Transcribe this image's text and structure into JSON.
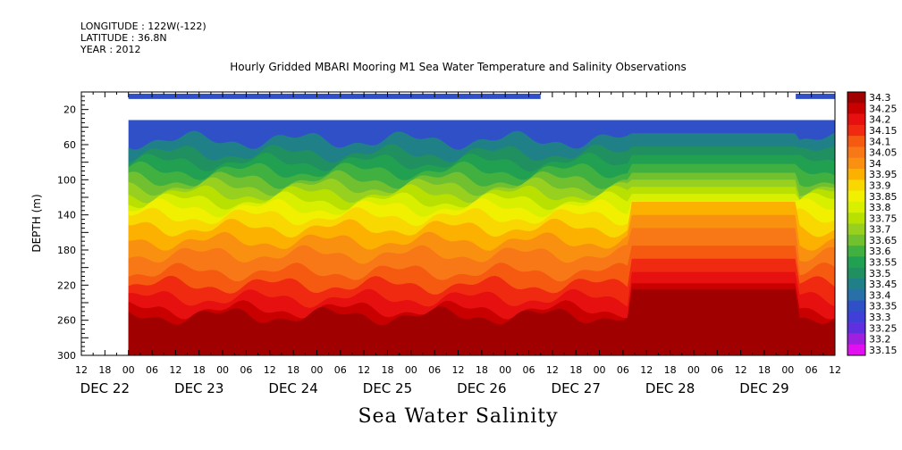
{
  "header": {
    "longitude": "LONGITUDE : 122W(-122)",
    "latitude": "LATITUDE : 36.8N",
    "year": "YEAR : 2012"
  },
  "chart_data": {
    "type": "heatmap",
    "title": "Hourly Gridded MBARI Mooring M1 Sea Water Temperature and Salinity Observations",
    "xlabel": "Sea Water Salinity",
    "ylabel": "DEPTH (m)",
    "y_range": [
      300,
      0
    ],
    "y_ticks": [
      20,
      60,
      100,
      140,
      180,
      220,
      260,
      300
    ],
    "x_range_hours": [
      -12,
      180
    ],
    "x_tick_labels": [
      "12",
      "18",
      "00",
      "06",
      "12",
      "18",
      "00",
      "06",
      "12",
      "18",
      "00",
      "06",
      "12",
      "18",
      "00",
      "06",
      "12",
      "18",
      "00",
      "06",
      "12",
      "18",
      "00",
      "06",
      "12",
      "18",
      "00",
      "06",
      "12",
      "18",
      "00",
      "06",
      "12"
    ],
    "date_labels": [
      "DEC 22",
      "DEC 23",
      "DEC 24",
      "DEC 25",
      "DEC 26",
      "DEC 27",
      "DEC 28",
      "DEC 29"
    ],
    "colorbar": {
      "levels": [
        "34.3",
        "34.25",
        "34.2",
        "34.15",
        "34.1",
        "34.05",
        "34",
        "33.95",
        "33.9",
        "33.85",
        "33.8",
        "33.75",
        "33.7",
        "33.65",
        "33.6",
        "33.55",
        "33.5",
        "33.45",
        "33.4",
        "33.35",
        "33.3",
        "33.25",
        "33.2",
        "33.15"
      ],
      "colors": [
        "#a00000",
        "#c80000",
        "#e61010",
        "#f02a10",
        "#f55a10",
        "#f87818",
        "#fa9010",
        "#fcb000",
        "#f8d800",
        "#f0f000",
        "#d8f000",
        "#b8e000",
        "#98d020",
        "#70c030",
        "#40b040",
        "#20a050",
        "#209060",
        "#208088",
        "#2870a8",
        "#3050c8",
        "#4040d8",
        "#6030e0",
        "#a020e0",
        "#e010f0"
      ]
    },
    "salinity_profile_surface": 33.35,
    "isolines_depth_m": {
      "33.45": 55,
      "33.5": 70,
      "33.55": 80,
      "33.6": 90,
      "33.65": 100,
      "33.7": 108,
      "33.75": 116,
      "33.8": 124,
      "33.85": 132,
      "33.9": 142,
      "33.95": 155,
      "34": 170,
      "34.05": 185,
      "34.1": 205,
      "34.15": 220,
      "34.2": 235,
      "34.25": 248,
      "34.3": 255
    }
  }
}
